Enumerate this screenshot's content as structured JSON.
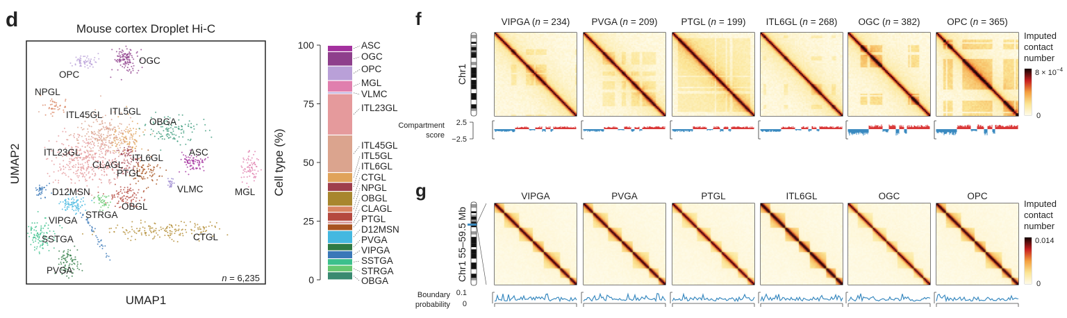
{
  "chart_data": [
    {
      "type": "scatter",
      "panel_letter": "d",
      "title": "Mouse cortex Droplet Hi-C",
      "xlabel": "UMAP1",
      "ylabel": "UMAP2",
      "n_symbol": "n",
      "n_text": " = 6,235",
      "clusters": [
        {
          "name": "OGC",
          "color": "#8e3f8c"
        },
        {
          "name": "OPC",
          "color": "#b9a0d8"
        },
        {
          "name": "NPGL",
          "color": "#d98462"
        },
        {
          "name": "ITL45GL",
          "color": "#dba48e"
        },
        {
          "name": "ITL5GL",
          "color": "#e0a35a"
        },
        {
          "name": "OBGA",
          "color": "#3a9a7a"
        },
        {
          "name": "ITL23GL",
          "color": "#e59a9c"
        },
        {
          "name": "ASC",
          "color": "#a3309e"
        },
        {
          "name": "ITL6GL",
          "color": "#9e3e4c"
        },
        {
          "name": "CLAGL",
          "color": "#d99090"
        },
        {
          "name": "PTGL",
          "color": "#a85420"
        },
        {
          "name": "MGL",
          "color": "#e07fae"
        },
        {
          "name": "VLMC",
          "color": "#9c8ad0"
        },
        {
          "name": "D12MSN",
          "color": "#3a78b8"
        },
        {
          "name": "OBGL",
          "color": "#b5493f"
        },
        {
          "name": "STRGA",
          "color": "#66c870"
        },
        {
          "name": "VIPGA",
          "color": "#44b8e0"
        },
        {
          "name": "SSTGA",
          "color": "#3cc08c"
        },
        {
          "name": "PVGA",
          "color": "#2e7a44"
        },
        {
          "name": "CTGL",
          "color": "#b08a2e"
        }
      ]
    },
    {
      "type": "bar",
      "stacked": true,
      "ylabel": "Cell type (%)",
      "ylim": [
        0,
        100
      ],
      "yticks": [
        "0",
        "25",
        "50",
        "75",
        "100"
      ],
      "categories": [
        "OBGA",
        "STRGA",
        "SSTGA",
        "VIPGA",
        "PVGA",
        "D12MSN",
        "PTGL",
        "CLAGL",
        "OBGL",
        "NPGL",
        "CTGL",
        "ITL6GL",
        "ITL5GL",
        "ITL45GL",
        "ITL23GL",
        "VLMC",
        "MGL",
        "OPC",
        "OGC",
        "ASC"
      ],
      "values": [
        3.4,
        2.8,
        2.8,
        3.4,
        3.1,
        5.5,
        2.8,
        1.2,
        3.8,
        2.6,
        6.3,
        3.8,
        4.2,
        16.0,
        17.6,
        0.7,
        4.9,
        6.2,
        6.1,
        2.7
      ],
      "colors": [
        "#3a8a70",
        "#66c870",
        "#3cc08c",
        "#3a78b8",
        "#2e7a44",
        "#44b8e0",
        "#a85420",
        "#d9a0a0",
        "#b5493f",
        "#d98462",
        "#a8862e",
        "#9e3e4c",
        "#e0a35a",
        "#dba48e",
        "#e59a9c",
        "#9c8ad0",
        "#e07fae",
        "#b9a0d8",
        "#8e3f8c",
        "#a3309e"
      ]
    }
  ],
  "panel_f": {
    "letter": "f",
    "ylabel": "Chr1",
    "n_symbol": "n",
    "panels": [
      {
        "pre": "VIPGA (",
        "post": " = 234)"
      },
      {
        "pre": "PVGA (",
        "post": " = 209)"
      },
      {
        "pre": "PTGL (",
        "post": " = 199)"
      },
      {
        "pre": "ITL6GL (",
        "post": " = 268)"
      },
      {
        "pre": "OGC (",
        "post": " = 382)"
      },
      {
        "pre": "OPC (",
        "post": " = 365)"
      }
    ],
    "colorbar": {
      "label": [
        "Imputed",
        "contact",
        "number"
      ],
      "max": "8 × 10",
      "max_exp": "−4",
      "min": "0"
    },
    "track": {
      "label": [
        "Compartment",
        "score"
      ],
      "ticks": [
        "2.5",
        "−2.5"
      ],
      "pos_color": "#d93838",
      "neg_color": "#3a8ac0"
    }
  },
  "panel_g": {
    "letter": "g",
    "ylabel": "Chr1 55–59.5 Mb",
    "panels": [
      "VIPGA",
      "PVGA",
      "PTGL",
      "ITL6GL",
      "OGC",
      "OPC"
    ],
    "colorbar": {
      "label": [
        "Imputed",
        "contact",
        "number"
      ],
      "max": "0.014",
      "min": "0"
    },
    "track": {
      "label": [
        "Boundary",
        "probability"
      ],
      "ticks": [
        "0.1",
        "0"
      ],
      "color": "#3a8ac0"
    }
  }
}
